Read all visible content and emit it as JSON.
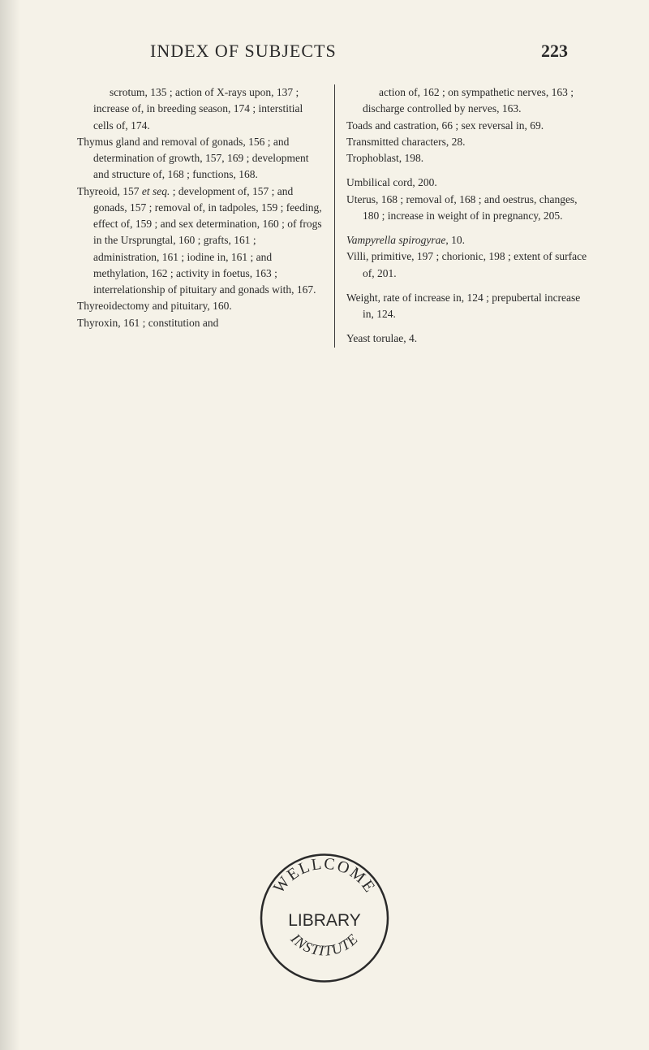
{
  "header": {
    "title": "INDEX OF SUBJECTS",
    "page_number": "223"
  },
  "left_column": {
    "entries": [
      {
        "text": "scrotum, 135 ; action of X-rays upon, 137 ; increase of, in breeding season, 174 ; interstitial cells of, 174.",
        "continuation": true
      },
      {
        "text": "Thymus gland and removal of gonads, 156 ; and determination of growth, 157, 169 ; development and structure of, 168 ; functions, 168."
      },
      {
        "text": "Thyreoid, 157 et seq. ; development of, 157 ; and gonads, 157 ; removal of, in tadpoles, 159 ; feeding, effect of, 159 ; and sex determination, 160 ; of frogs in the Ursprungtal, 160 ; grafts, 161 ; administration, 161 ; iodine in, 161 ; and methylation, 162 ; activity in foetus, 163 ; interrelationship of pituitary and gonads with, 167.",
        "italic_phrase": "et seq."
      },
      {
        "text": "Thyreoidectomy and pituitary, 160."
      },
      {
        "text": "Thyroxin, 161 ; constitution and"
      }
    ]
  },
  "right_column": {
    "entries": [
      {
        "text": "action of, 162 ; on sympathetic nerves, 163 ; discharge controlled by nerves, 163.",
        "continuation": true
      },
      {
        "text": "Toads and castration, 66 ; sex reversal in, 69."
      },
      {
        "text": "Transmitted characters, 28."
      },
      {
        "text": "Trophoblast, 198.",
        "bottom_gap": true
      },
      {
        "text": "Umbilical cord, 200."
      },
      {
        "text": "Uterus, 168 ; removal of, 168 ; and oestrus, changes, 180 ; increase in weight of in pregnancy, 205.",
        "bottom_gap": true
      },
      {
        "text": "Vampyrella spirogyrae, 10.",
        "italic_phrase": "Vampyrella spirogyrae"
      },
      {
        "text": "Villi, primitive, 197 ; chorionic, 198 ; extent of surface of, 201.",
        "bottom_gap": true
      },
      {
        "text": "Weight, rate of increase in, 124 ; prepubertal increase in, 124.",
        "bottom_gap": true
      },
      {
        "text": "Yeast torulae, 4."
      }
    ]
  },
  "stamp": {
    "top_arc": "WELLCOME",
    "center": "LIBRARY",
    "bottom_arc": "INSTITUTE",
    "stroke_color": "#2a2a2a",
    "stroke_width": 2.5
  },
  "colors": {
    "background": "#f5f2e8",
    "text": "#2a2a2a"
  }
}
